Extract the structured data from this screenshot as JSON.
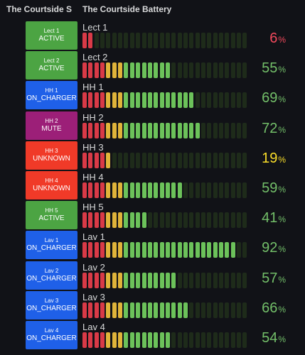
{
  "panels": {
    "left_title": "The Courtside S",
    "right_title": "The Courtside Battery"
  },
  "colors": {
    "active": "#4ca443",
    "on_charger": "#1f60e8",
    "mute": "#9c1f78",
    "unknown": "#f03a28",
    "seg_red": "#d93a47",
    "seg_yellow": "#e0b43a",
    "seg_green": "#6cc25a",
    "seg_empty": "#1e2b1a",
    "pct_red": "#f2495c",
    "pct_yellow": "#fade2a",
    "pct_green": "#73bf69"
  },
  "devices": [
    {
      "name": "Lect 1",
      "status": "ACTIVE",
      "status_key": "active",
      "label": "Lect 1",
      "battery": 6,
      "unit": "%"
    },
    {
      "name": "Lect 2",
      "status": "ACTIVE",
      "status_key": "active",
      "label": "Lect 2",
      "battery": 55,
      "unit": "%"
    },
    {
      "name": "HH 1",
      "status": "ON_CHARGER",
      "status_key": "on_charger",
      "label": "HH 1",
      "battery": 69,
      "unit": "%"
    },
    {
      "name": "HH 2",
      "status": "MUTE",
      "status_key": "mute",
      "label": "HH 2",
      "battery": 72,
      "unit": "%"
    },
    {
      "name": "HH 3",
      "status": "UNKNOWN",
      "status_key": "unknown",
      "label": "HH 3",
      "battery": 19,
      "unit": "%"
    },
    {
      "name": "HH 4",
      "status": "UNKNOWN",
      "status_key": "unknown",
      "label": "HH 4",
      "battery": 59,
      "unit": "%"
    },
    {
      "name": "HH 5",
      "status": "ACTIVE",
      "status_key": "active",
      "label": "HH 5",
      "battery": 41,
      "unit": "%"
    },
    {
      "name": "Lav 1",
      "status": "ON_CHARGER",
      "status_key": "on_charger",
      "label": "Lav 1",
      "battery": 92,
      "unit": "%"
    },
    {
      "name": "Lav 2",
      "status": "ON_CHARGER",
      "status_key": "on_charger",
      "label": "Lav 2",
      "battery": 57,
      "unit": "%"
    },
    {
      "name": "Lav 3",
      "status": "ON_CHARGER",
      "status_key": "on_charger",
      "label": "Lav 3",
      "battery": 66,
      "unit": "%"
    },
    {
      "name": "Lav 4",
      "status": "ON_CHARGER",
      "status_key": "on_charger",
      "label": "Lav 4",
      "battery": 54,
      "unit": "%"
    }
  ]
}
